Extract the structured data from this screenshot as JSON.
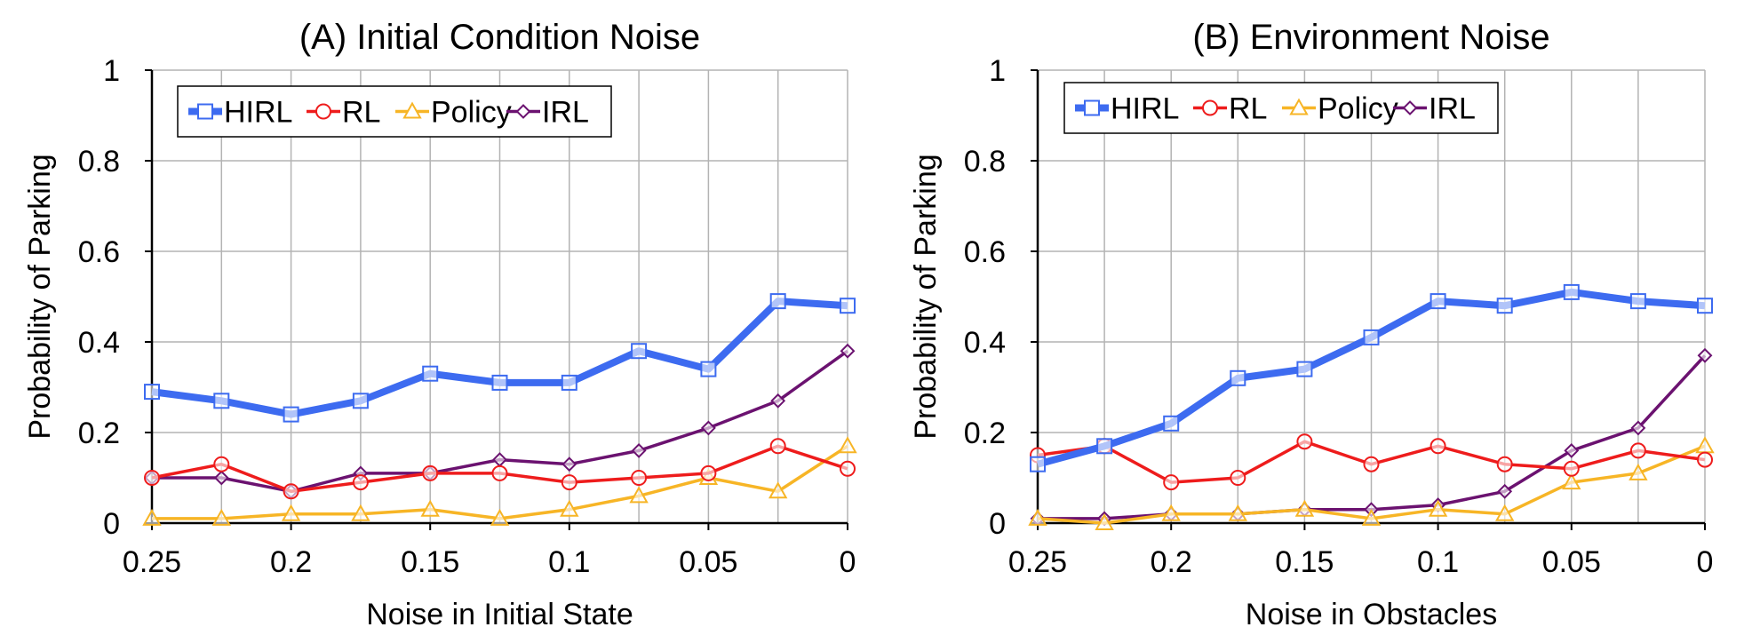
{
  "chart_data": [
    {
      "type": "line",
      "title": "(A) Initial Condition Noise",
      "xlabel": "Noise in Initial State",
      "ylabel": "Probability of Parking",
      "x": [
        0.25,
        0.225,
        0.2,
        0.175,
        0.15,
        0.125,
        0.1,
        0.075,
        0.05,
        0.025,
        0
      ],
      "xticks": [
        "0.25",
        "0.2",
        "0.15",
        "0.1",
        "0.05",
        "0"
      ],
      "yticks": [
        "0",
        "0.2",
        "0.4",
        "0.6",
        "0.8",
        "1"
      ],
      "ylim": [
        0,
        1
      ],
      "xlim": [
        0.25,
        0
      ],
      "grid": true,
      "legend_position": "top-left",
      "series": [
        {
          "name": "HIRL",
          "color": "#3d6bf0",
          "marker": "square",
          "values": [
            0.29,
            0.27,
            0.24,
            0.27,
            0.33,
            0.31,
            0.31,
            0.38,
            0.34,
            0.49,
            0.48
          ]
        },
        {
          "name": "RL",
          "color": "#ee1c1c",
          "marker": "circle",
          "values": [
            0.1,
            0.13,
            0.07,
            0.09,
            0.11,
            0.11,
            0.09,
            0.1,
            0.11,
            0.17,
            0.12
          ]
        },
        {
          "name": "Policy",
          "color": "#f7b526",
          "marker": "triangle",
          "values": [
            0.01,
            0.01,
            0.02,
            0.02,
            0.03,
            0.01,
            0.03,
            0.06,
            0.1,
            0.07,
            0.17
          ]
        },
        {
          "name": "IRL",
          "color": "#6b1270",
          "marker": "diamond",
          "values": [
            0.1,
            0.1,
            0.07,
            0.11,
            0.11,
            0.14,
            0.13,
            0.16,
            0.21,
            0.27,
            0.38
          ]
        }
      ]
    },
    {
      "type": "line",
      "title": "(B) Environment Noise",
      "xlabel": "Noise in Obstacles",
      "ylabel": "Probability of Parking",
      "x": [
        0.25,
        0.225,
        0.2,
        0.175,
        0.15,
        0.125,
        0.1,
        0.075,
        0.05,
        0.025,
        0
      ],
      "xticks": [
        "0.25",
        "0.2",
        "0.15",
        "0.1",
        "0.05",
        "0"
      ],
      "yticks": [
        "0",
        "0.2",
        "0.4",
        "0.6",
        "0.8",
        "1"
      ],
      "ylim": [
        0,
        1
      ],
      "xlim": [
        0.25,
        0
      ],
      "grid": true,
      "legend_position": "top-left",
      "series": [
        {
          "name": "HIRL",
          "color": "#3d6bf0",
          "marker": "square",
          "values": [
            0.13,
            0.17,
            0.22,
            0.32,
            0.34,
            0.41,
            0.49,
            0.48,
            0.51,
            0.49,
            0.48
          ]
        },
        {
          "name": "RL",
          "color": "#ee1c1c",
          "marker": "circle",
          "values": [
            0.15,
            0.17,
            0.09,
            0.1,
            0.18,
            0.13,
            0.17,
            0.13,
            0.12,
            0.16,
            0.14
          ]
        },
        {
          "name": "Policy",
          "color": "#f7b526",
          "marker": "triangle",
          "values": [
            0.01,
            0.0,
            0.02,
            0.02,
            0.03,
            0.01,
            0.03,
            0.02,
            0.09,
            0.11,
            0.17
          ]
        },
        {
          "name": "IRL",
          "color": "#6b1270",
          "marker": "diamond",
          "values": [
            0.01,
            0.01,
            0.02,
            0.02,
            0.03,
            0.03,
            0.04,
            0.07,
            0.16,
            0.21,
            0.37
          ]
        }
      ]
    }
  ]
}
